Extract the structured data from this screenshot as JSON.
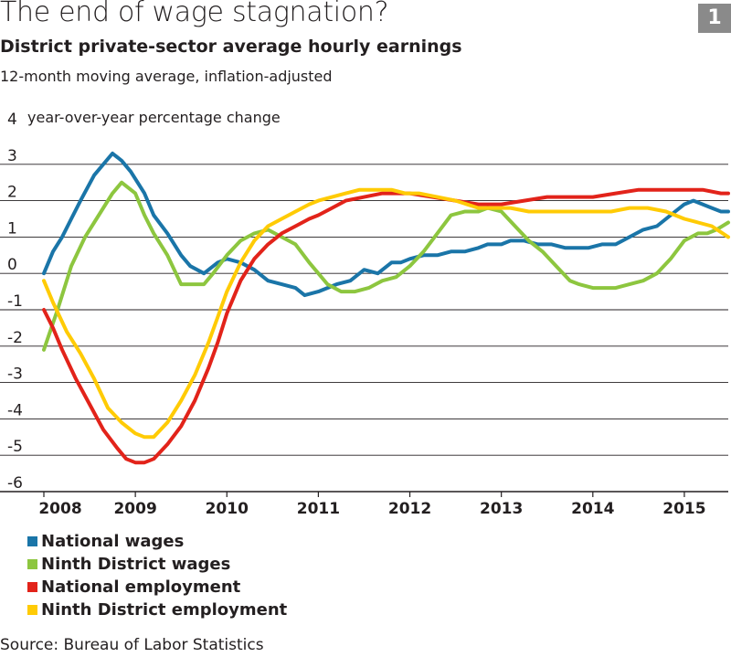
{
  "header": {
    "title": "The end of wage stagnation?",
    "badge": "1",
    "subtitle": "District private-sector average hourly earnings",
    "note": "12-month moving average, inflation-adjusted"
  },
  "source": "Source: Bureau of Labor Statistics",
  "colors": {
    "national_wages": "#1a75a8",
    "ninth_wages": "#8dc63f",
    "national_employment": "#e2231a",
    "ninth_employment": "#ffcb05"
  },
  "chart_data": {
    "type": "line",
    "title": "District private-sector average hourly earnings",
    "ylabel": "year-over-year percentage change",
    "ylim": [
      -6,
      4
    ],
    "yticks": [
      "4",
      "3",
      "2",
      "1",
      "0",
      "-1",
      "-2",
      "-3",
      "-4",
      "-5",
      "-6"
    ],
    "ytick_values": [
      4,
      3,
      2,
      1,
      0,
      -1,
      -2,
      -3,
      -4,
      -5,
      -6
    ],
    "xlim": [
      2008,
      2015.48
    ],
    "xticks": [
      "2008",
      "2009",
      "2010",
      "2011",
      "2012",
      "2013",
      "2014",
      "2015"
    ],
    "xtick_values": [
      2008,
      2009,
      2010,
      2011,
      2012,
      2013,
      2014,
      2015
    ],
    "legend_position": "bottom-left",
    "series": [
      {
        "name": "National wages",
        "x": [
          2008,
          2008.1,
          2008.2,
          2008.3,
          2008.4,
          2008.55,
          2008.75,
          2008.85,
          2008.95,
          2009.1,
          2009.2,
          2009.35,
          2009.5,
          2009.6,
          2009.75,
          2009.9,
          2010,
          2010.15,
          2010.3,
          2010.45,
          2010.6,
          2010.75,
          2010.85,
          2011,
          2011.1,
          2011.2,
          2011.35,
          2011.5,
          2011.65,
          2011.8,
          2011.9,
          2012,
          2012.15,
          2012.3,
          2012.45,
          2012.6,
          2012.75,
          2012.85,
          2013,
          2013.1,
          2013.25,
          2013.4,
          2013.55,
          2013.7,
          2013.8,
          2013.95,
          2014.1,
          2014.25,
          2014.4,
          2014.55,
          2014.7,
          2014.85,
          2015,
          2015.1,
          2015.2,
          2015.3,
          2015.4,
          2015.48
        ],
        "values": [
          0.0,
          0.6,
          1.0,
          1.5,
          2.0,
          2.7,
          3.3,
          3.1,
          2.8,
          2.2,
          1.6,
          1.1,
          0.5,
          0.2,
          0.0,
          0.3,
          0.4,
          0.3,
          0.1,
          -0.2,
          -0.3,
          -0.4,
          -0.6,
          -0.5,
          -0.4,
          -0.3,
          -0.2,
          0.1,
          0.0,
          0.3,
          0.3,
          0.4,
          0.5,
          0.5,
          0.6,
          0.6,
          0.7,
          0.8,
          0.8,
          0.9,
          0.9,
          0.8,
          0.8,
          0.7,
          0.7,
          0.7,
          0.8,
          0.8,
          1.0,
          1.2,
          1.3,
          1.6,
          1.9,
          2.0,
          1.9,
          1.8,
          1.7,
          1.7
        ]
      },
      {
        "name": "Ninth District wages",
        "x": [
          2008,
          2008.15,
          2008.3,
          2008.45,
          2008.6,
          2008.75,
          2008.85,
          2009,
          2009.1,
          2009.2,
          2009.35,
          2009.5,
          2009.6,
          2009.75,
          2009.85,
          2010,
          2010.15,
          2010.3,
          2010.45,
          2010.6,
          2010.75,
          2010.9,
          2011,
          2011.1,
          2011.25,
          2011.4,
          2011.55,
          2011.7,
          2011.85,
          2012,
          2012.15,
          2012.3,
          2012.45,
          2012.6,
          2012.75,
          2012.85,
          2013,
          2013.15,
          2013.3,
          2013.45,
          2013.6,
          2013.75,
          2013.85,
          2014,
          2014.1,
          2014.25,
          2014.4,
          2014.55,
          2014.7,
          2014.85,
          2015,
          2015.15,
          2015.25,
          2015.35,
          2015.48
        ],
        "values": [
          -2.1,
          -1.0,
          0.2,
          1.0,
          1.6,
          2.2,
          2.5,
          2.2,
          1.6,
          1.1,
          0.5,
          -0.3,
          -0.3,
          -0.3,
          0.0,
          0.5,
          0.9,
          1.1,
          1.2,
          1.0,
          0.8,
          0.3,
          0.0,
          -0.3,
          -0.5,
          -0.5,
          -0.4,
          -0.2,
          -0.1,
          0.2,
          0.6,
          1.1,
          1.6,
          1.7,
          1.7,
          1.8,
          1.7,
          1.3,
          0.9,
          0.6,
          0.2,
          -0.2,
          -0.3,
          -0.4,
          -0.4,
          -0.4,
          -0.3,
          -0.2,
          0.0,
          0.4,
          0.9,
          1.1,
          1.1,
          1.2,
          1.4
        ]
      },
      {
        "name": "National employment",
        "x": [
          2008,
          2008.1,
          2008.2,
          2008.35,
          2008.5,
          2008.65,
          2008.8,
          2008.9,
          2009,
          2009.1,
          2009.2,
          2009.35,
          2009.5,
          2009.65,
          2009.8,
          2009.9,
          2010,
          2010.15,
          2010.3,
          2010.45,
          2010.6,
          2010.75,
          2010.9,
          2011,
          2011.15,
          2011.3,
          2011.5,
          2011.7,
          2011.85,
          2012,
          2012.25,
          2012.5,
          2012.75,
          2013,
          2013.25,
          2013.5,
          2013.75,
          2014,
          2014.25,
          2014.5,
          2014.75,
          2015,
          2015.2,
          2015.4,
          2015.48
        ],
        "values": [
          -1.0,
          -1.5,
          -2.1,
          -2.9,
          -3.6,
          -4.3,
          -4.8,
          -5.1,
          -5.2,
          -5.2,
          -5.1,
          -4.7,
          -4.2,
          -3.5,
          -2.6,
          -1.9,
          -1.1,
          -0.2,
          0.4,
          0.8,
          1.1,
          1.3,
          1.5,
          1.6,
          1.8,
          2.0,
          2.1,
          2.2,
          2.2,
          2.2,
          2.1,
          2.0,
          1.9,
          1.9,
          2.0,
          2.1,
          2.1,
          2.1,
          2.2,
          2.3,
          2.3,
          2.3,
          2.3,
          2.2,
          2.2
        ]
      },
      {
        "name": "Ninth District employment",
        "x": [
          2008,
          2008.1,
          2008.25,
          2008.4,
          2008.55,
          2008.7,
          2008.85,
          2009,
          2009.1,
          2009.2,
          2009.35,
          2009.5,
          2009.65,
          2009.8,
          2009.9,
          2010,
          2010.15,
          2010.3,
          2010.45,
          2010.6,
          2010.75,
          2010.9,
          2011,
          2011.15,
          2011.3,
          2011.45,
          2011.55,
          2011.65,
          2011.8,
          2011.95,
          2012.1,
          2012.3,
          2012.5,
          2012.75,
          2012.9,
          2013.1,
          2013.3,
          2013.5,
          2013.75,
          2014,
          2014.2,
          2014.4,
          2014.6,
          2014.8,
          2015,
          2015.15,
          2015.3,
          2015.48
        ],
        "values": [
          -0.2,
          -0.8,
          -1.6,
          -2.2,
          -2.9,
          -3.7,
          -4.1,
          -4.4,
          -4.5,
          -4.5,
          -4.1,
          -3.5,
          -2.8,
          -1.9,
          -1.2,
          -0.5,
          0.3,
          0.9,
          1.3,
          1.5,
          1.7,
          1.9,
          2.0,
          2.1,
          2.2,
          2.3,
          2.3,
          2.3,
          2.3,
          2.2,
          2.2,
          2.1,
          2.0,
          1.8,
          1.8,
          1.8,
          1.7,
          1.7,
          1.7,
          1.7,
          1.7,
          1.8,
          1.8,
          1.7,
          1.5,
          1.4,
          1.3,
          1.0
        ]
      }
    ]
  }
}
